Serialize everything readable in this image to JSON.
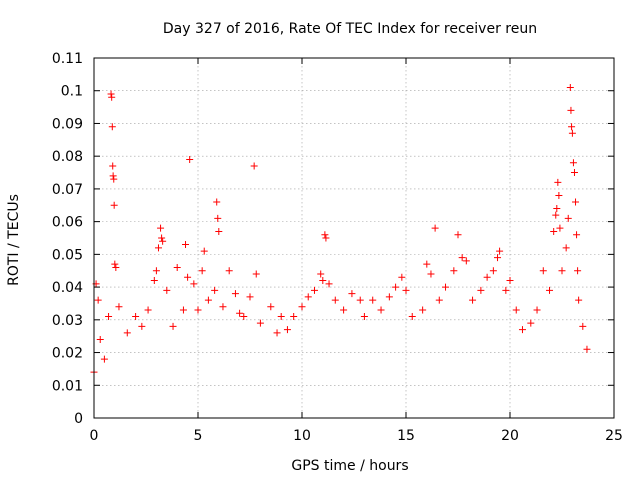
{
  "chart_data": {
    "type": "scatter",
    "title": "Day 327 of 2016, Rate Of TEC Index for receiver reun",
    "xlabel": "GPS time / hours",
    "ylabel": "ROTI / TECUs",
    "xlim": [
      0,
      25
    ],
    "ylim": [
      0,
      0.11
    ],
    "xticks": [
      0,
      5,
      10,
      15,
      20,
      25
    ],
    "xtick_labels": [
      "0",
      "5",
      "10",
      "15",
      "20",
      "25"
    ],
    "yticks": [
      0,
      0.01,
      0.02,
      0.03,
      0.04,
      0.05,
      0.06,
      0.07,
      0.08,
      0.09,
      0.1,
      0.11
    ],
    "ytick_labels": [
      "0",
      "0.01",
      "0.02",
      "0.03",
      "0.04",
      "0.05",
      "0.06",
      "0.07",
      "0.08",
      "0.09",
      "0.1",
      "0.11"
    ],
    "grid": true,
    "marker": "+",
    "color": "#ff0000",
    "series": [
      {
        "name": "ROTI",
        "points": [
          [
            0.0,
            0.014
          ],
          [
            0.1,
            0.041
          ],
          [
            0.2,
            0.036
          ],
          [
            0.3,
            0.024
          ],
          [
            0.5,
            0.018
          ],
          [
            0.7,
            0.031
          ],
          [
            0.82,
            0.099
          ],
          [
            0.85,
            0.098
          ],
          [
            0.88,
            0.089
          ],
          [
            0.9,
            0.077
          ],
          [
            0.92,
            0.074
          ],
          [
            0.95,
            0.073
          ],
          [
            0.97,
            0.065
          ],
          [
            1.0,
            0.047
          ],
          [
            1.05,
            0.046
          ],
          [
            1.2,
            0.034
          ],
          [
            1.6,
            0.026
          ],
          [
            2.0,
            0.031
          ],
          [
            2.3,
            0.028
          ],
          [
            2.6,
            0.033
          ],
          [
            2.9,
            0.042
          ],
          [
            3.0,
            0.045
          ],
          [
            3.1,
            0.052
          ],
          [
            3.2,
            0.058
          ],
          [
            3.25,
            0.055
          ],
          [
            3.3,
            0.054
          ],
          [
            3.5,
            0.039
          ],
          [
            3.8,
            0.028
          ],
          [
            4.0,
            0.046
          ],
          [
            4.3,
            0.033
          ],
          [
            4.4,
            0.053
          ],
          [
            4.5,
            0.043
          ],
          [
            4.6,
            0.079
          ],
          [
            4.8,
            0.041
          ],
          [
            5.0,
            0.033
          ],
          [
            5.2,
            0.045
          ],
          [
            5.3,
            0.051
          ],
          [
            5.5,
            0.036
          ],
          [
            5.8,
            0.039
          ],
          [
            5.9,
            0.066
          ],
          [
            5.95,
            0.061
          ],
          [
            6.0,
            0.057
          ],
          [
            6.2,
            0.034
          ],
          [
            6.5,
            0.045
          ],
          [
            6.8,
            0.038
          ],
          [
            7.0,
            0.032
          ],
          [
            7.2,
            0.031
          ],
          [
            7.5,
            0.037
          ],
          [
            7.7,
            0.077
          ],
          [
            7.8,
            0.044
          ],
          [
            8.0,
            0.029
          ],
          [
            8.5,
            0.034
          ],
          [
            8.8,
            0.026
          ],
          [
            9.0,
            0.031
          ],
          [
            9.3,
            0.027
          ],
          [
            9.6,
            0.031
          ],
          [
            10.0,
            0.034
          ],
          [
            10.3,
            0.037
          ],
          [
            10.6,
            0.039
          ],
          [
            10.9,
            0.044
          ],
          [
            11.0,
            0.042
          ],
          [
            11.1,
            0.056
          ],
          [
            11.15,
            0.055
          ],
          [
            11.3,
            0.041
          ],
          [
            11.6,
            0.036
          ],
          [
            12.0,
            0.033
          ],
          [
            12.4,
            0.038
          ],
          [
            12.8,
            0.036
          ],
          [
            13.0,
            0.031
          ],
          [
            13.4,
            0.036
          ],
          [
            13.8,
            0.033
          ],
          [
            14.2,
            0.037
          ],
          [
            14.5,
            0.04
          ],
          [
            14.8,
            0.043
          ],
          [
            15.0,
            0.039
          ],
          [
            15.3,
            0.031
          ],
          [
            15.8,
            0.033
          ],
          [
            16.0,
            0.047
          ],
          [
            16.2,
            0.044
          ],
          [
            16.4,
            0.058
          ],
          [
            16.6,
            0.036
          ],
          [
            16.9,
            0.04
          ],
          [
            17.3,
            0.045
          ],
          [
            17.5,
            0.056
          ],
          [
            17.7,
            0.049
          ],
          [
            17.9,
            0.048
          ],
          [
            18.2,
            0.036
          ],
          [
            18.6,
            0.039
          ],
          [
            18.9,
            0.043
          ],
          [
            19.2,
            0.045
          ],
          [
            19.4,
            0.049
          ],
          [
            19.5,
            0.051
          ],
          [
            19.8,
            0.039
          ],
          [
            20.0,
            0.042
          ],
          [
            20.3,
            0.033
          ],
          [
            20.6,
            0.027
          ],
          [
            21.0,
            0.029
          ],
          [
            21.3,
            0.033
          ],
          [
            21.6,
            0.045
          ],
          [
            21.9,
            0.039
          ],
          [
            22.1,
            0.057
          ],
          [
            22.2,
            0.062
          ],
          [
            22.25,
            0.064
          ],
          [
            22.3,
            0.072
          ],
          [
            22.35,
            0.068
          ],
          [
            22.4,
            0.058
          ],
          [
            22.5,
            0.045
          ],
          [
            22.7,
            0.052
          ],
          [
            22.8,
            0.061
          ],
          [
            22.9,
            0.101
          ],
          [
            22.93,
            0.094
          ],
          [
            22.96,
            0.089
          ],
          [
            23.0,
            0.087
          ],
          [
            23.05,
            0.078
          ],
          [
            23.1,
            0.075
          ],
          [
            23.15,
            0.066
          ],
          [
            23.2,
            0.056
          ],
          [
            23.25,
            0.045
          ],
          [
            23.3,
            0.036
          ],
          [
            23.5,
            0.028
          ],
          [
            23.7,
            0.021
          ]
        ]
      }
    ]
  }
}
